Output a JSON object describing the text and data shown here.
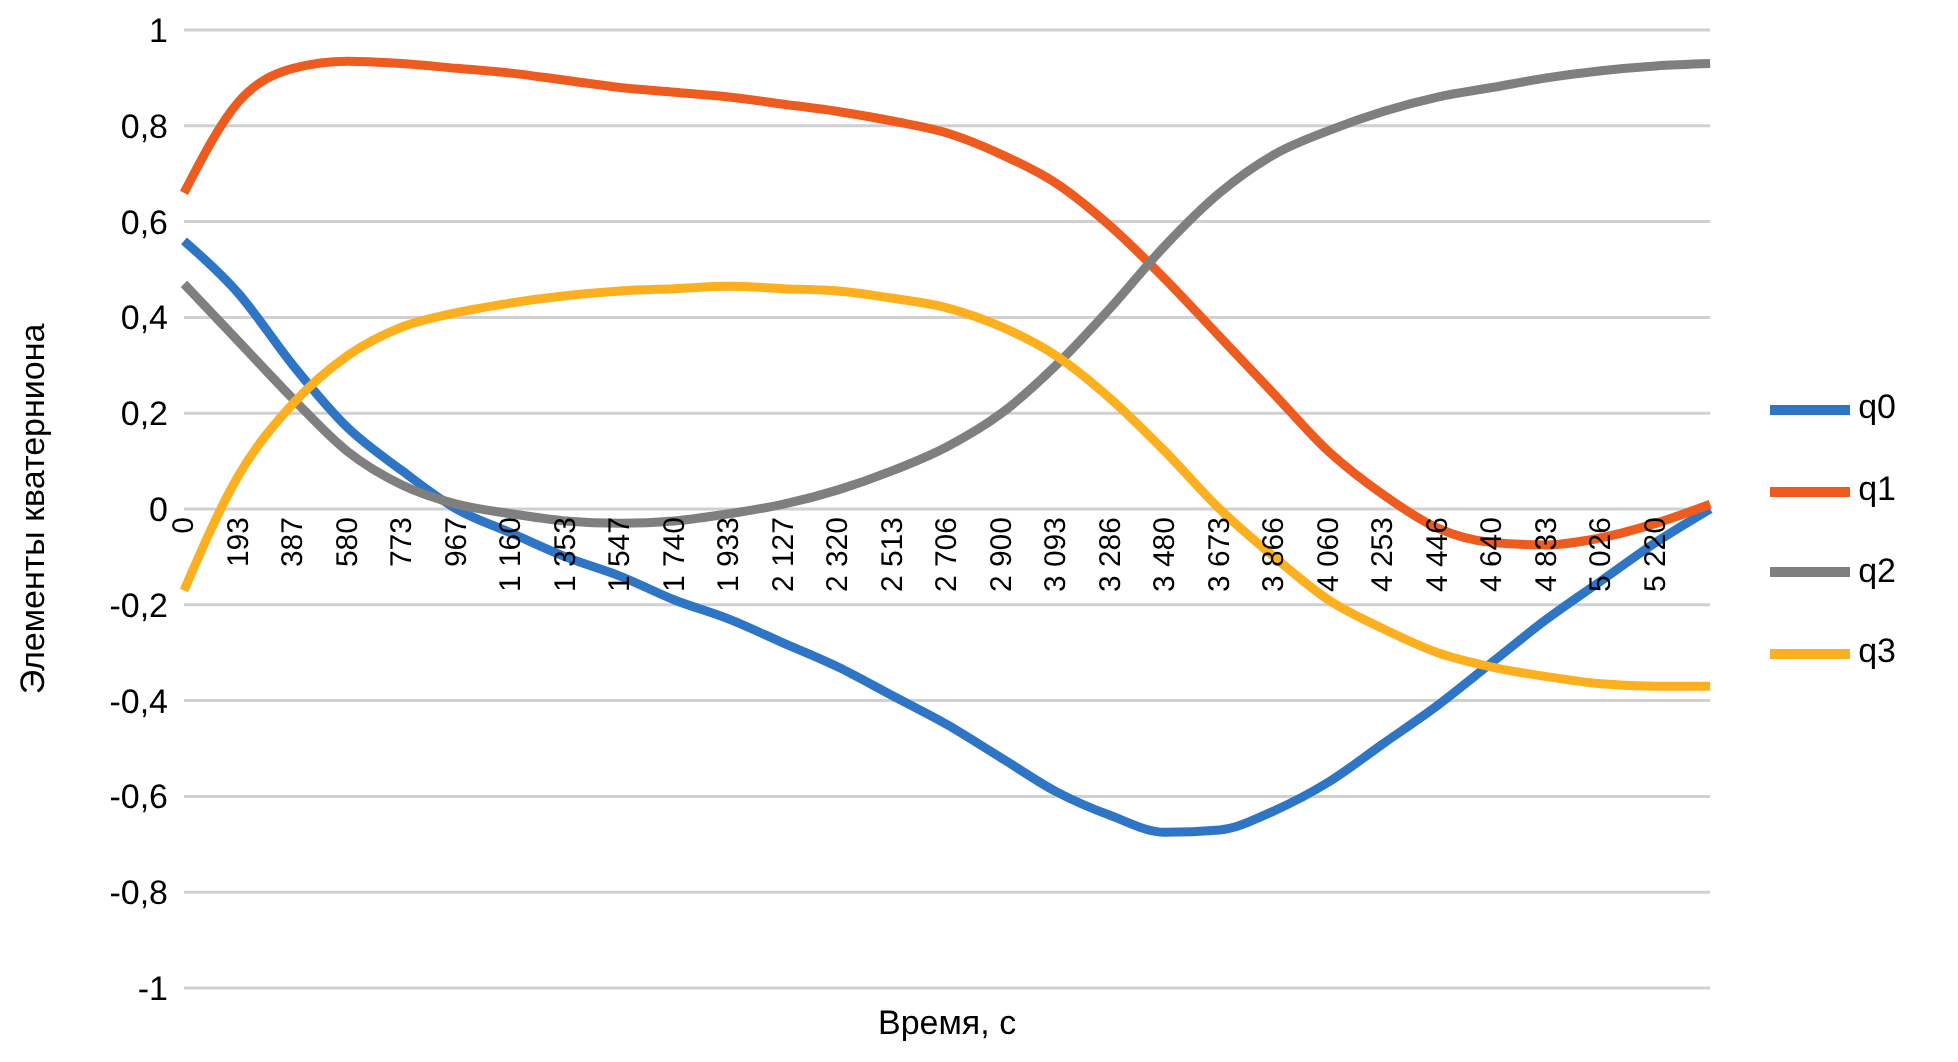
{
  "chart_data": {
    "type": "line",
    "xlabel": "Время, с",
    "ylabel": "Элементы кватерниона",
    "categories": [
      "0",
      "193",
      "387",
      "580",
      "773",
      "967",
      "1 160",
      "1 353",
      "1 547",
      "1 740",
      "1 933",
      "2 127",
      "2 320",
      "2 513",
      "2 706",
      "2 900",
      "3 093",
      "3 286",
      "3 480",
      "3 673",
      "3 866",
      "4 060",
      "4 253",
      "4 446",
      "4 640",
      "4 833",
      "5 026",
      "5 220",
      null
    ],
    "series": [
      {
        "name": "q0",
        "color": "#2e75c6",
        "values": [
          0.56,
          0.45,
          0.3,
          0.17,
          0.08,
          0.0,
          -0.05,
          -0.1,
          -0.14,
          -0.19,
          -0.23,
          -0.28,
          -0.33,
          -0.39,
          -0.45,
          -0.52,
          -0.59,
          -0.64,
          -0.675,
          -0.67,
          -0.63,
          -0.57,
          -0.49,
          -0.41,
          -0.32,
          -0.23,
          -0.15,
          -0.07,
          0.0
        ]
      },
      {
        "name": "q1",
        "color": "#ed5b1f",
        "values": [
          0.66,
          0.85,
          0.92,
          0.935,
          0.93,
          0.92,
          0.91,
          0.895,
          0.88,
          0.87,
          0.86,
          0.845,
          0.83,
          0.81,
          0.785,
          0.74,
          0.68,
          0.59,
          0.48,
          0.36,
          0.24,
          0.12,
          0.03,
          -0.04,
          -0.07,
          -0.075,
          -0.06,
          -0.03,
          0.01
        ]
      },
      {
        "name": "q2",
        "color": "#7f7f7f",
        "values": [
          0.47,
          0.35,
          0.23,
          0.12,
          0.05,
          0.01,
          -0.01,
          -0.025,
          -0.03,
          -0.025,
          -0.01,
          0.01,
          0.04,
          0.08,
          0.13,
          0.2,
          0.3,
          0.42,
          0.55,
          0.66,
          0.74,
          0.79,
          0.83,
          0.86,
          0.88,
          0.9,
          0.915,
          0.925,
          0.93
        ]
      },
      {
        "name": "q3",
        "color": "#fdb01f",
        "values": [
          -0.17,
          0.07,
          0.22,
          0.32,
          0.38,
          0.41,
          0.43,
          0.445,
          0.455,
          0.46,
          0.465,
          0.46,
          0.455,
          0.44,
          0.42,
          0.38,
          0.32,
          0.23,
          0.12,
          0.0,
          -0.1,
          -0.19,
          -0.25,
          -0.3,
          -0.33,
          -0.35,
          -0.365,
          -0.37,
          -0.37
        ]
      }
    ],
    "ylim": [
      -1,
      1
    ],
    "yticks": [
      {
        "value": -1,
        "label": "-1"
      },
      {
        "value": -0.8,
        "label": "-0,8"
      },
      {
        "value": -0.6,
        "label": "-0,6"
      },
      {
        "value": -0.4,
        "label": "-0,4"
      },
      {
        "value": -0.2,
        "label": "-0,2"
      },
      {
        "value": 0,
        "label": "0"
      },
      {
        "value": 0.2,
        "label": "0,2"
      },
      {
        "value": 0.4,
        "label": "0,4"
      },
      {
        "value": 0.6,
        "label": "0,6"
      },
      {
        "value": 0.8,
        "label": "0,8"
      },
      {
        "value": 1,
        "label": "1"
      }
    ],
    "grid": "y",
    "legend": "right",
    "marker": "none",
    "line_style": "solid"
  }
}
